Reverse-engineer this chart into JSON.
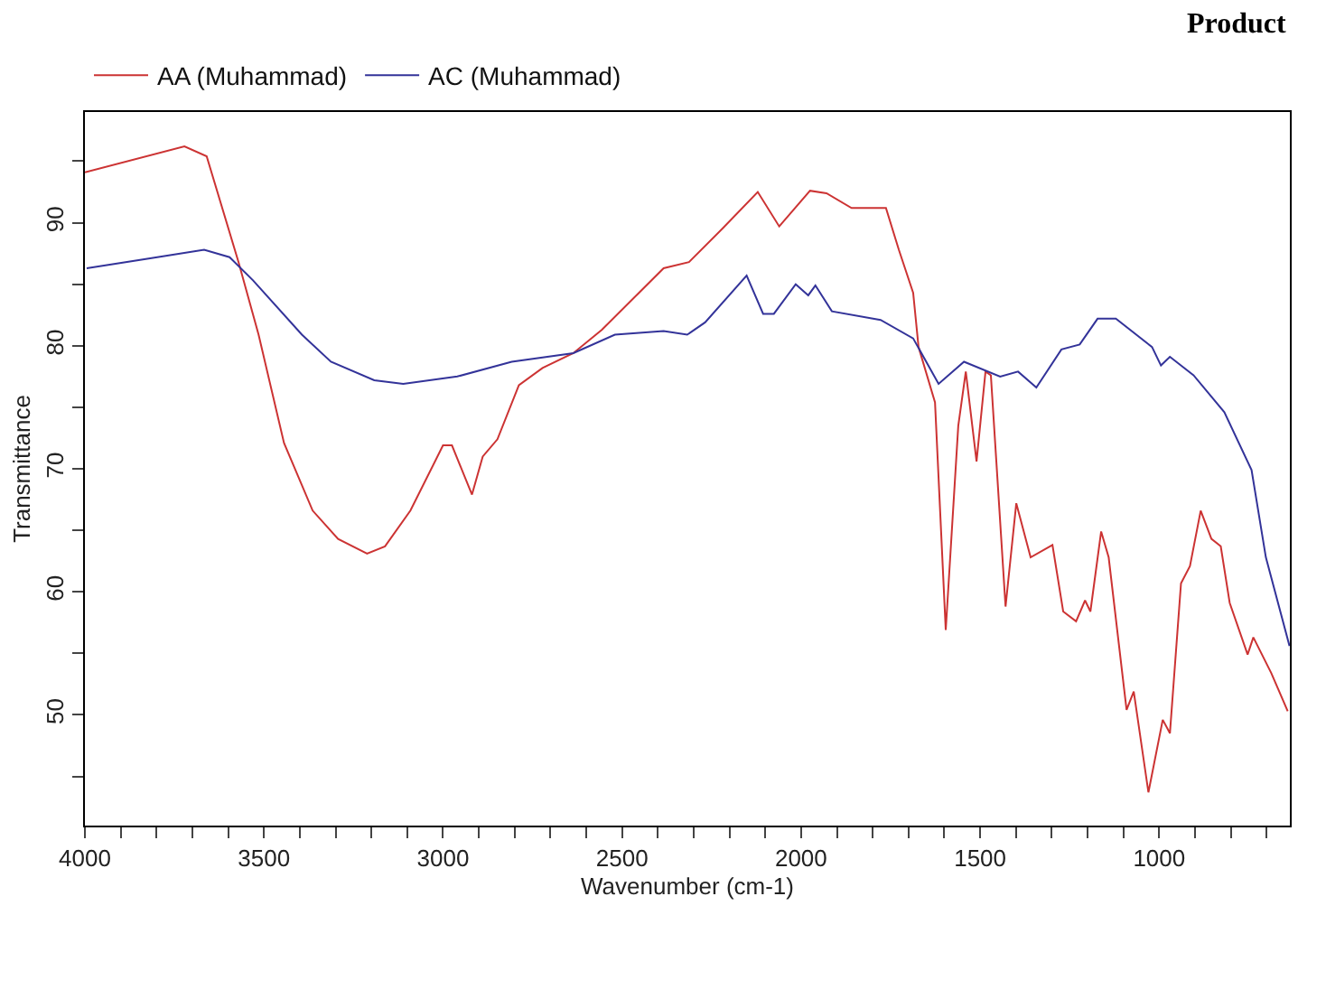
{
  "chart_data": {
    "type": "line",
    "xlabel": "Wavenumber (cm-1)",
    "ylabel": "Transmittance",
    "annotations": [
      "Product"
    ],
    "xlim": [
      4000,
      635
    ],
    "ylim": [
      41,
      99
    ],
    "xticks": [
      4000,
      {
        "value": 3900,
        "label": null
      },
      {
        "value": 3800,
        "label": null
      },
      {
        "value": 3700,
        "label": null
      },
      {
        "value": 3600,
        "label": null
      },
      3500,
      {
        "value": 3400,
        "label": null
      },
      {
        "value": 3300,
        "label": null
      },
      {
        "value": 3200,
        "label": null
      },
      {
        "value": 3100,
        "label": null
      },
      3000,
      {
        "value": 2900,
        "label": null
      },
      {
        "value": 2800,
        "label": null
      },
      {
        "value": 2700,
        "label": null
      },
      {
        "value": 2600,
        "label": null
      },
      2500,
      {
        "value": 2400,
        "label": null
      },
      {
        "value": 2300,
        "label": null
      },
      {
        "value": 2200,
        "label": null
      },
      {
        "value": 2100,
        "label": null
      },
      2000,
      {
        "value": 1900,
        "label": null
      },
      {
        "value": 1800,
        "label": null
      },
      {
        "value": 1700,
        "label": null
      },
      {
        "value": 1600,
        "label": null
      },
      1500,
      {
        "value": 1400,
        "label": null
      },
      {
        "value": 1300,
        "label": null
      },
      {
        "value": 1200,
        "label": null
      },
      {
        "value": 1100,
        "label": null
      },
      1000,
      {
        "value": 900,
        "label": null
      },
      {
        "value": 800,
        "label": null
      },
      {
        "value": 700,
        "label": null
      }
    ],
    "yticks": [
      {
        "value": 45,
        "label": null
      },
      50,
      {
        "value": 55,
        "label": null
      },
      60,
      {
        "value": 65,
        "label": null
      },
      70,
      {
        "value": 75,
        "label": null
      },
      80,
      {
        "value": 85,
        "label": null
      },
      90,
      {
        "value": 95,
        "label": null
      }
    ],
    "legend": "top left",
    "marker": "none",
    "line_style": "solid",
    "series": [
      {
        "name": "AA (Muhammad)",
        "color": "#cc3333",
        "x": [
          4000,
          3722,
          3660,
          3571,
          3515,
          3444,
          3364,
          3293,
          3212,
          3162,
          3091,
          3000,
          2975,
          2919,
          2889,
          2848,
          2788,
          2722,
          2636,
          2556,
          2384,
          2313,
          2217,
          2121,
          2061,
          1975,
          1929,
          1859,
          1763,
          1727,
          1687,
          1672,
          1626,
          1596,
          1561,
          1540,
          1510,
          1485,
          1470,
          1429,
          1399,
          1359,
          1298,
          1268,
          1232,
          1207,
          1192,
          1162,
          1141,
          1091,
          1071,
          1030,
          990,
          970,
          939,
          914,
          884,
          854,
          828,
          803,
          753,
          737,
          687,
          641
        ],
        "values": [
          94.1,
          96.2,
          95.4,
          86.8,
          80.9,
          72.1,
          66.6,
          64.3,
          63.1,
          63.7,
          66.6,
          71.9,
          71.9,
          67.9,
          71.0,
          72.4,
          76.8,
          78.2,
          79.4,
          81.3,
          86.3,
          86.8,
          89.6,
          92.5,
          89.7,
          92.6,
          92.4,
          91.2,
          91.2,
          87.8,
          84.3,
          79.9,
          75.4,
          56.9,
          73.5,
          77.9,
          70.6,
          77.9,
          77.6,
          58.8,
          67.2,
          62.8,
          63.8,
          58.4,
          57.6,
          59.3,
          58.4,
          64.9,
          62.8,
          50.4,
          51.9,
          43.7,
          49.6,
          48.5,
          60.7,
          62.1,
          66.6,
          64.3,
          63.7,
          59.1,
          54.9,
          56.3,
          53.4,
          50.3
        ]
      },
      {
        "name": "AC (Muhammad)",
        "color": "#333399",
        "x": [
          3995,
          3818,
          3667,
          3596,
          3530,
          3394,
          3313,
          3192,
          3111,
          2960,
          2808,
          2636,
          2520,
          2384,
          2318,
          2268,
          2152,
          2106,
          2076,
          2015,
          1980,
          1960,
          1914,
          1778,
          1687,
          1616,
          1545,
          1444,
          1394,
          1343,
          1273,
          1222,
          1172,
          1121,
          1020,
          995,
          970,
          904,
          818,
          742,
          702,
          636
        ],
        "values": [
          86.3,
          87.1,
          87.8,
          87.2,
          85.3,
          80.9,
          78.7,
          77.2,
          76.9,
          77.5,
          78.7,
          79.4,
          80.9,
          81.2,
          80.9,
          81.9,
          85.7,
          82.6,
          82.6,
          85.0,
          84.1,
          84.9,
          82.8,
          82.1,
          80.6,
          76.9,
          78.7,
          77.5,
          77.9,
          76.6,
          79.7,
          80.1,
          82.2,
          82.2,
          79.9,
          78.4,
          79.1,
          77.6,
          74.6,
          69.9,
          62.8,
          55.6
        ]
      }
    ]
  }
}
